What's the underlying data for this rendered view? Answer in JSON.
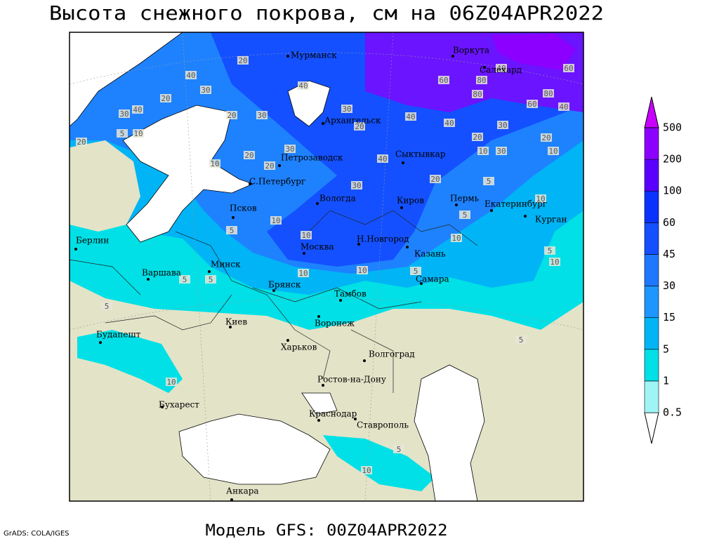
{
  "title": "Высота снежного покрова, см на 06Z04APR2022",
  "footer": "Модель GFS: 00Z04APR2022",
  "credit": "GrADS: COLA/IGES",
  "cities": [
    "Мурманск",
    "Воркута",
    "Салехард",
    "Архангельск",
    "Петрозаводск",
    "Сыктывкар",
    "С.Петербург",
    "Вологда",
    "Киров",
    "Пермь",
    "Екатеринбург",
    "Курган",
    "Псков",
    "Берлин",
    "Н.Новгород",
    "Москва",
    "Казань",
    "Минск",
    "Варшава",
    "Самара",
    "Брянск",
    "Тамбов",
    "Киев",
    "Воронеж",
    "Будапешт",
    "Харьков",
    "Волгоград",
    "Ростов-на-Дону",
    "Бухарест",
    "Краснодар",
    "Ставрополь",
    "Анкара"
  ],
  "contour_labels": [
    20,
    40,
    30,
    20,
    30,
    40,
    5,
    10,
    20,
    40,
    30,
    20,
    30,
    30,
    20,
    10,
    20,
    40,
    40,
    60,
    80,
    80,
    60,
    40,
    80,
    40,
    60,
    40,
    30,
    20,
    10,
    30,
    10,
    20,
    30,
    20,
    10,
    5,
    10,
    5,
    10,
    5,
    5,
    10,
    10,
    10,
    5,
    5,
    5,
    5,
    5,
    10,
    10,
    5,
    20,
    10
  ],
  "colorbar": {
    "levels": [
      0.5,
      1,
      5,
      15,
      30,
      45,
      60,
      100,
      200,
      500
    ],
    "colors": [
      "#ffffff",
      "#9ff5f5",
      "#00e0e6",
      "#00b4f5",
      "#1e96ff",
      "#1e78ff",
      "#1450ff",
      "#0a32ff",
      "#5a00ff",
      "#8c00ff",
      "#c800ff"
    ]
  }
}
